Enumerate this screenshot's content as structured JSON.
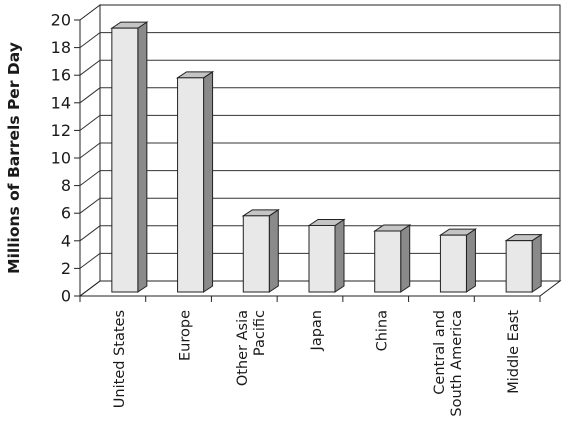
{
  "chart_data": {
    "type": "bar",
    "title": "",
    "xlabel": "",
    "ylabel": "Millions of Barrels Per Day",
    "ylim": [
      0,
      20
    ],
    "yticks": [
      0,
      2,
      4,
      6,
      8,
      10,
      12,
      14,
      16,
      18,
      20
    ],
    "grid": true,
    "legend": "none",
    "categories": [
      [
        "United States"
      ],
      [
        "Europe"
      ],
      [
        "Other Asia",
        "Pacific"
      ],
      [
        "Japan"
      ],
      [
        "China"
      ],
      [
        "Central and",
        "South America"
      ],
      [
        "Middle East"
      ]
    ],
    "values": [
      19.7,
      16.1,
      6.1,
      5.4,
      5.0,
      4.7,
      4.3
    ],
    "colors": {
      "bar_front": "#e8e8e8",
      "bar_side": "#8a8a8a",
      "bar_top": "#c4c4c4",
      "outline": "#222222",
      "grid": "#333333"
    }
  }
}
